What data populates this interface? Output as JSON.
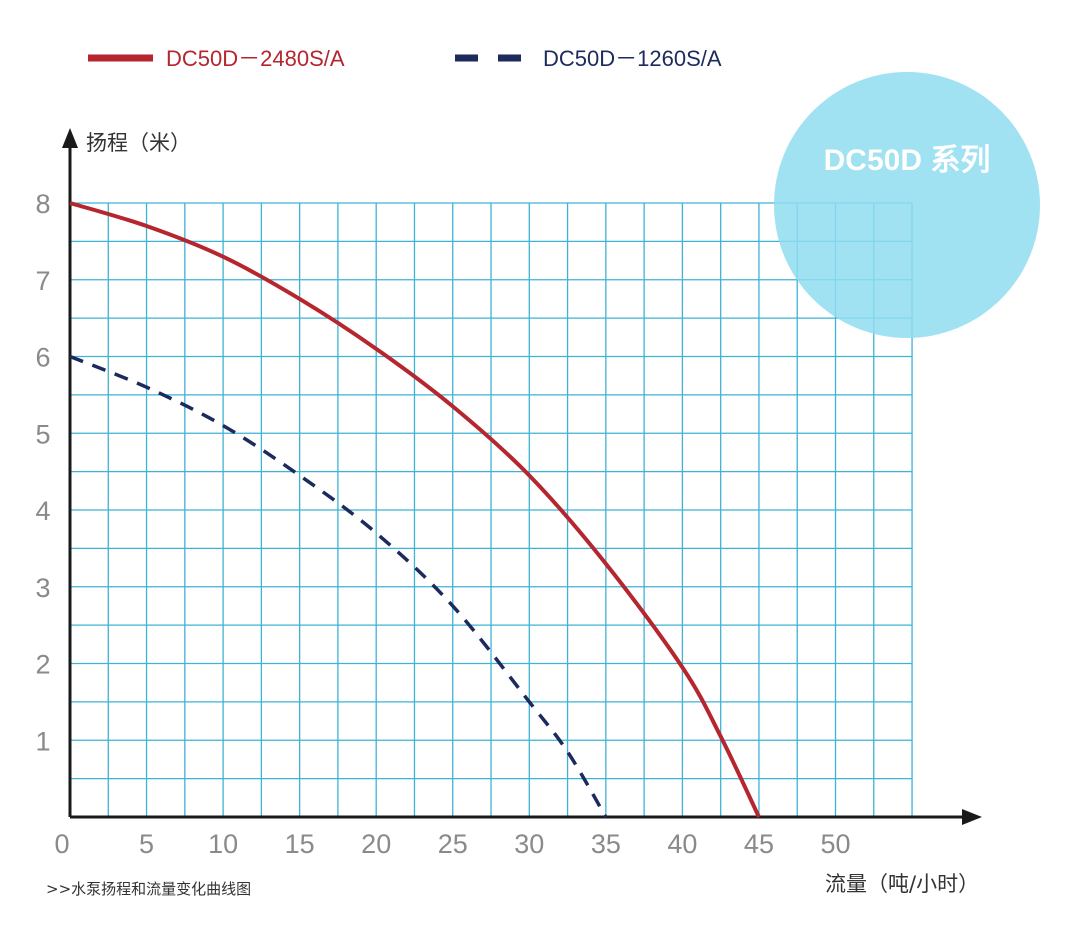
{
  "chart_data": {
    "type": "line",
    "title": "",
    "badge": "DC50D 系列",
    "xlabel": "流量（吨/小时）",
    "ylabel": "扬程（米）",
    "footnote": ">>水泵扬程和流量变化曲线图",
    "xlim": [
      0,
      55
    ],
    "ylim": [
      0,
      8
    ],
    "x_ticks": [
      0,
      5,
      10,
      15,
      20,
      25,
      30,
      35,
      40,
      45,
      50
    ],
    "x_tick_labels": [
      "0",
      "5",
      "10",
      "15",
      "20",
      "25",
      "30",
      "35",
      "40",
      "45",
      "50"
    ],
    "y_ticks": [
      1,
      2,
      3,
      4,
      5,
      6,
      7,
      8
    ],
    "y_tick_labels": [
      "1",
      "2",
      "3",
      "4",
      "5",
      "6",
      "7",
      "8"
    ],
    "grid": true,
    "grid_x_step": 2.5,
    "grid_y_step": 0.5,
    "legend_position": "top-left",
    "series": [
      {
        "name": "DC50D－2480S/A",
        "color": "#b5262e",
        "style": "solid",
        "x": [
          0,
          5,
          10,
          15,
          20,
          25,
          30,
          35,
          40,
          42.5,
          45
        ],
        "y": [
          8.0,
          7.7,
          7.3,
          6.75,
          6.1,
          5.35,
          4.45,
          3.3,
          1.95,
          1.05,
          0.0
        ]
      },
      {
        "name": "DC50D－1260S/A",
        "color": "#1c2a5e",
        "style": "dashed",
        "x": [
          0,
          5,
          10,
          15,
          20,
          25,
          30,
          32.5,
          35
        ],
        "y": [
          6.0,
          5.6,
          5.1,
          4.45,
          3.7,
          2.75,
          1.5,
          0.85,
          0.0
        ]
      }
    ]
  }
}
